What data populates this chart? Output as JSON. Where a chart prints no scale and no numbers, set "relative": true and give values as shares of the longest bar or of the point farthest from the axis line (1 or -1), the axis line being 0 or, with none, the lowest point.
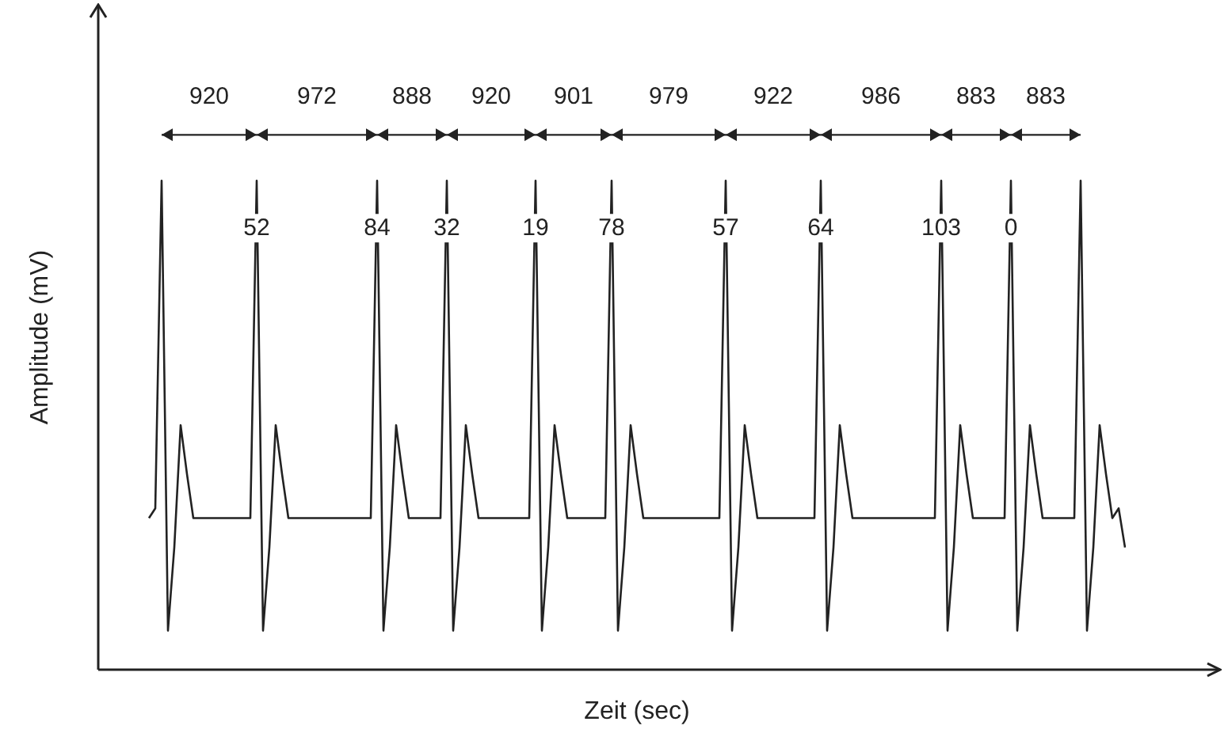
{
  "chart_data": {
    "type": "line",
    "xlabel": "Zeit (sec)",
    "ylabel": "Amplitude (mV)",
    "relative": true,
    "grid": false,
    "legend": false,
    "marker": "none",
    "line_style": "solid",
    "categories": [
      null,
      null,
      null,
      null,
      null,
      null,
      null,
      null,
      null,
      null,
      null,
      null,
      null,
      null,
      null,
      null,
      null,
      null,
      null,
      null,
      null,
      null,
      null,
      null,
      null,
      null,
      null,
      null,
      null,
      null,
      null,
      null,
      null,
      null,
      null,
      null,
      null,
      null,
      null,
      null,
      null,
      null,
      null,
      null,
      null,
      null,
      null,
      null,
      null,
      null,
      null,
      null,
      null,
      null,
      null,
      null,
      null,
      null,
      null,
      null,
      null,
      null,
      null,
      null,
      null,
      null,
      null,
      null,
      null,
      null,
      null,
      null,
      null,
      null,
      null,
      null,
      null,
      null,
      null,
      null,
      null,
      null,
      null,
      null,
      null,
      null,
      null,
      null,
      null,
      null,
      null,
      null,
      null,
      null,
      null,
      null,
      null,
      null,
      null,
      null,
      null,
      null,
      null,
      null,
      null,
      null,
      null,
      null,
      null,
      null,
      null,
      null,
      null,
      null,
      null,
      null,
      null,
      null,
      null,
      null,
      null,
      null,
      null,
      null,
      null,
      null,
      null,
      null,
      null,
      null,
      null,
      null,
      null,
      null,
      null,
      null,
      null,
      null,
      null,
      null,
      null,
      null,
      null,
      null,
      null,
      null,
      null,
      null,
      null,
      null,
      null,
      null,
      null,
      null,
      null
    ],
    "series": [
      {
        "color": "#222222",
        "values": [
          0.31,
          0.33,
          1,
          0.08,
          0.25,
          0.5,
          0.4,
          0.31,
          0.31,
          0.31,
          0.31,
          0.31,
          0.31,
          0.31,
          0.31,
          0.31,
          0.31,
          1,
          0.08,
          0.25,
          0.5,
          0.4,
          0.31,
          0.31,
          0.31,
          0.31,
          0.31,
          0.31,
          0.31,
          0.31,
          0.31,
          0.31,
          0.31,
          0.31,
          0.31,
          0.31,
          1,
          0.08,
          0.25,
          0.5,
          0.4,
          0.31,
          0.31,
          0.31,
          0.31,
          0.31,
          0.31,
          1,
          0.08,
          0.25,
          0.5,
          0.4,
          0.31,
          0.31,
          0.31,
          0.31,
          0.31,
          0.31,
          0.31,
          0.31,
          0.31,
          1,
          0.08,
          0.25,
          0.5,
          0.4,
          0.31,
          0.31,
          0.31,
          0.31,
          0.31,
          0.31,
          0.31,
          1,
          0.08,
          0.25,
          0.5,
          0.4,
          0.31,
          0.31,
          0.31,
          0.31,
          0.31,
          0.31,
          0.31,
          0.31,
          0.31,
          0.31,
          0.31,
          0.31,
          0.31,
          1,
          0.08,
          0.25,
          0.5,
          0.4,
          0.31,
          0.31,
          0.31,
          0.31,
          0.31,
          0.31,
          0.31,
          0.31,
          0.31,
          0.31,
          1,
          0.08,
          0.25,
          0.5,
          0.4,
          0.31,
          0.31,
          0.31,
          0.31,
          0.31,
          0.31,
          0.31,
          0.31,
          0.31,
          0.31,
          0.31,
          0.31,
          0.31,
          0.31,
          1,
          0.08,
          0.25,
          0.5,
          0.4,
          0.31,
          0.31,
          0.31,
          0.31,
          0.31,
          0.31,
          1,
          0.08,
          0.25,
          0.5,
          0.4,
          0.31,
          0.31,
          0.31,
          0.31,
          0.31,
          0.31,
          1,
          0.08,
          0.25,
          0.5,
          0.4,
          0.31,
          0.33,
          0.25
        ]
      }
    ],
    "annotations": [
      "920",
      "972",
      "888",
      "920",
      "901",
      "979",
      "922",
      "986",
      "883",
      "883",
      "52",
      "84",
      "32",
      "19",
      "78",
      "57",
      "64",
      "103",
      "0"
    ]
  }
}
